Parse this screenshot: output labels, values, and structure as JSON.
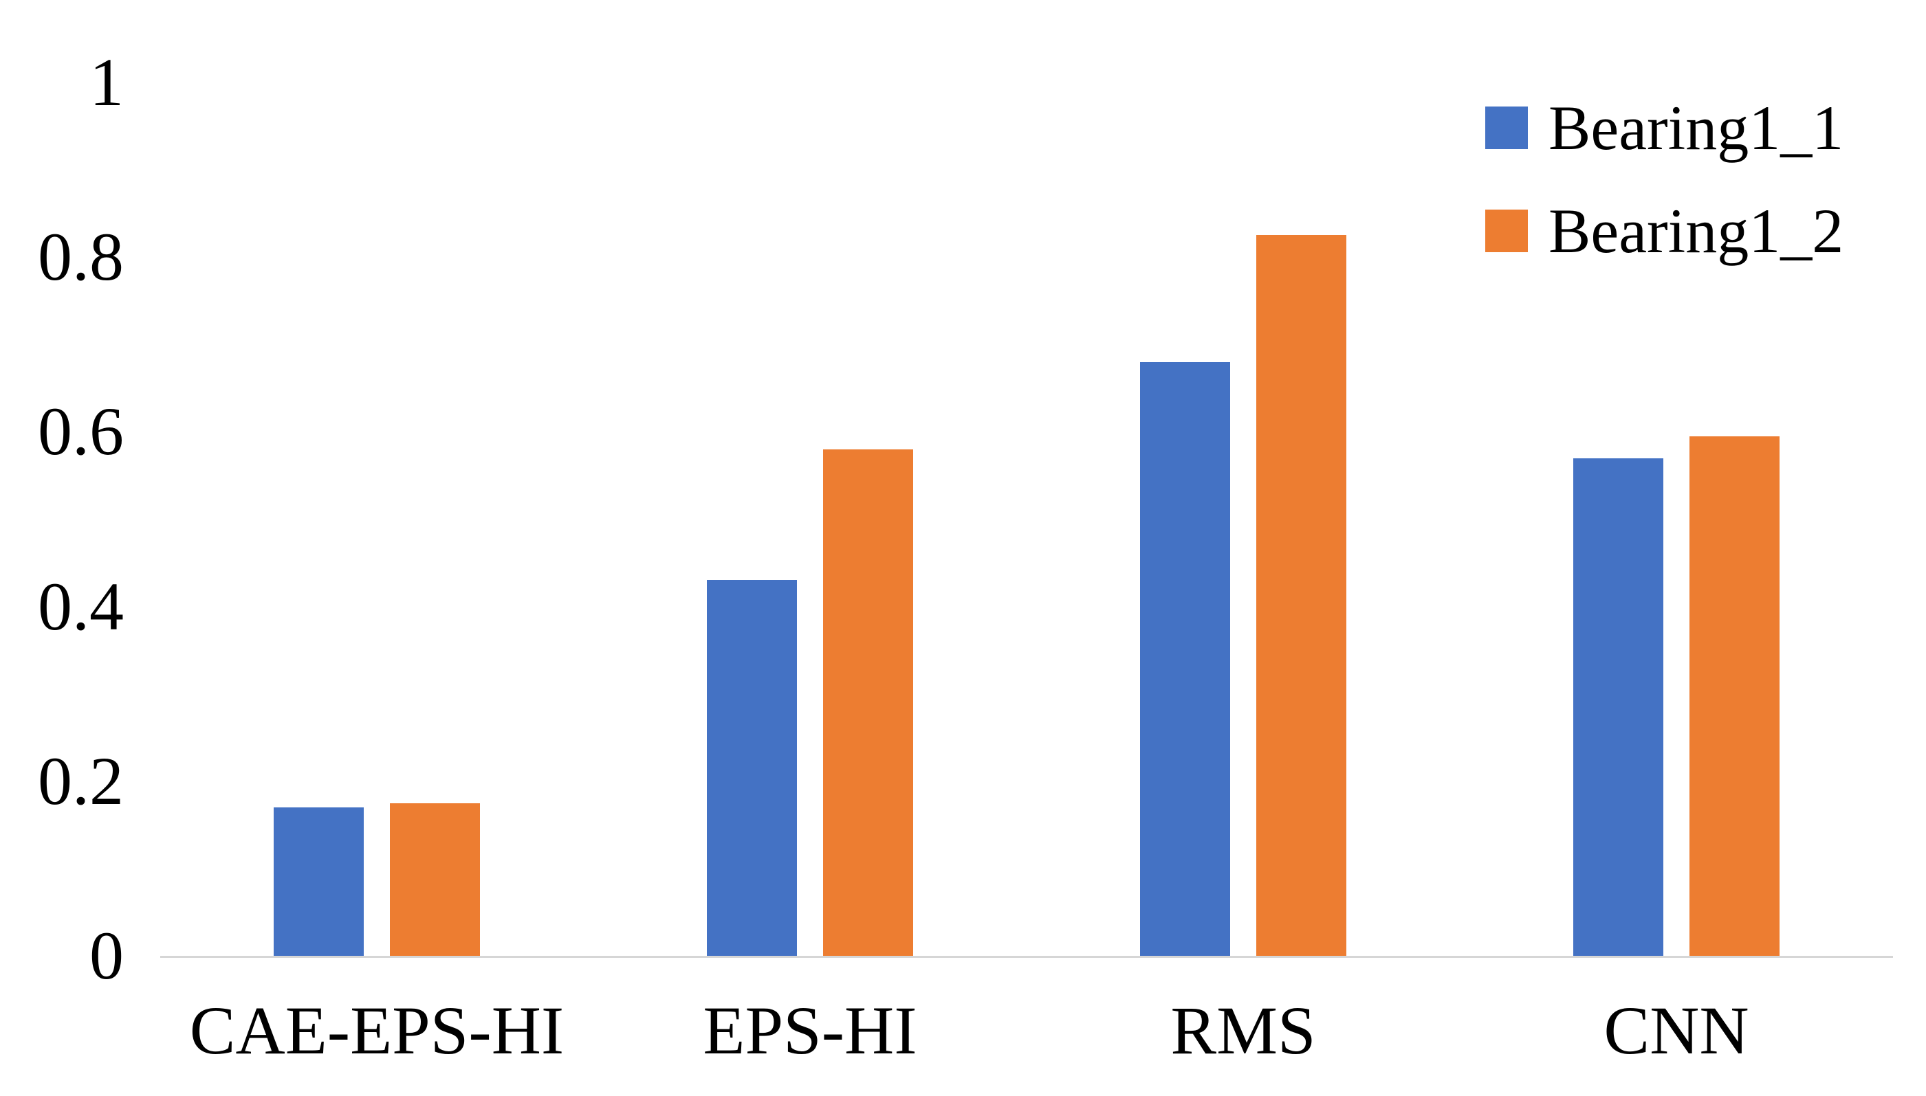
{
  "chart_data": {
    "type": "bar",
    "categories": [
      "CAE-EPS-HI",
      "EPS-HI",
      "RMS",
      "CNN"
    ],
    "series": [
      {
        "name": "Bearing1_1",
        "color": "#4472C4",
        "values": [
          0.17,
          0.43,
          0.68,
          0.57
        ]
      },
      {
        "name": "Bearing1_2",
        "color": "#ED7D31",
        "values": [
          0.175,
          0.58,
          0.825,
          0.595
        ]
      }
    ],
    "y_axis": {
      "range": [
        0,
        1
      ],
      "ticks": [
        0,
        0.2,
        0.4,
        0.6,
        0.8,
        1
      ],
      "tick_labels": [
        "0",
        "0.2",
        "0.4",
        "0.6",
        "0.8",
        "1"
      ]
    },
    "grid": false,
    "legend": {
      "position": "top-right",
      "entries": [
        "Bearing1_1",
        "Bearing1_2"
      ]
    },
    "colors": {
      "axis_line": "#d6d6d6",
      "text": "#000000",
      "background": "#ffffff"
    }
  }
}
